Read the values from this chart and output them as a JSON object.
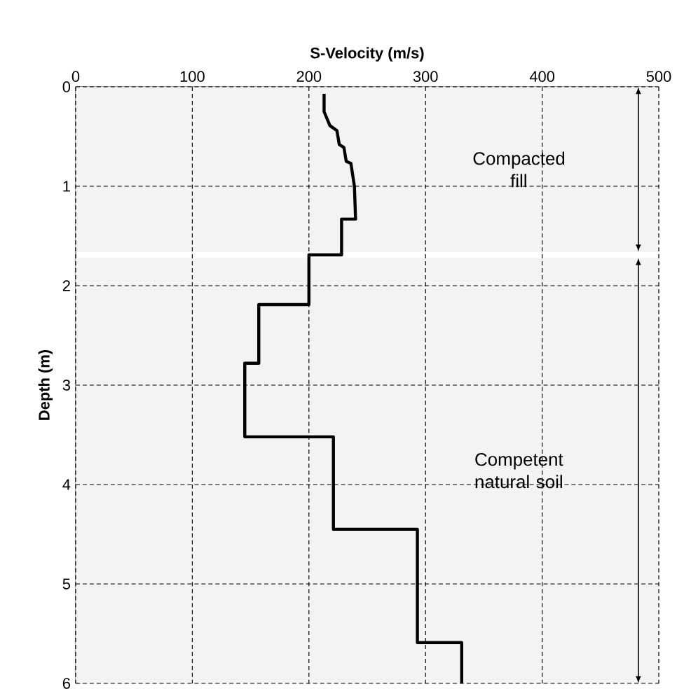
{
  "chart_data": {
    "type": "line",
    "xlabel": "S-Velocity (m/s)",
    "ylabel": "Depth (m)",
    "x": [
      213,
      213,
      218,
      224,
      226,
      230,
      232,
      236,
      239,
      240,
      228,
      228,
      200,
      200,
      157,
      157,
      145,
      145,
      221,
      221,
      293,
      293,
      331,
      331
    ],
    "values": [
      0.07,
      0.25,
      0.39,
      0.44,
      0.58,
      0.61,
      0.75,
      0.77,
      1.0,
      1.33,
      1.33,
      1.69,
      1.69,
      2.19,
      2.19,
      2.78,
      2.78,
      3.52,
      3.52,
      4.45,
      4.45,
      5.59,
      5.59,
      6
    ],
    "color": "#000000",
    "line_style": "solid",
    "xlim": [
      0,
      500
    ],
    "xticks": [
      0,
      100,
      200,
      300,
      400,
      500
    ],
    "ylim": [
      6,
      0
    ],
    "yticks": [
      0,
      1,
      2,
      3,
      4,
      5,
      6
    ],
    "grid": true,
    "bands": [
      {
        "axis": "y",
        "from": 0,
        "to": 1.66,
        "label": "Compacted fill",
        "color": "#f3f3f3"
      },
      {
        "axis": "y",
        "from": 1.72,
        "to": 6,
        "label": "Competent natural soil",
        "color": "#f3f3f3"
      }
    ]
  }
}
